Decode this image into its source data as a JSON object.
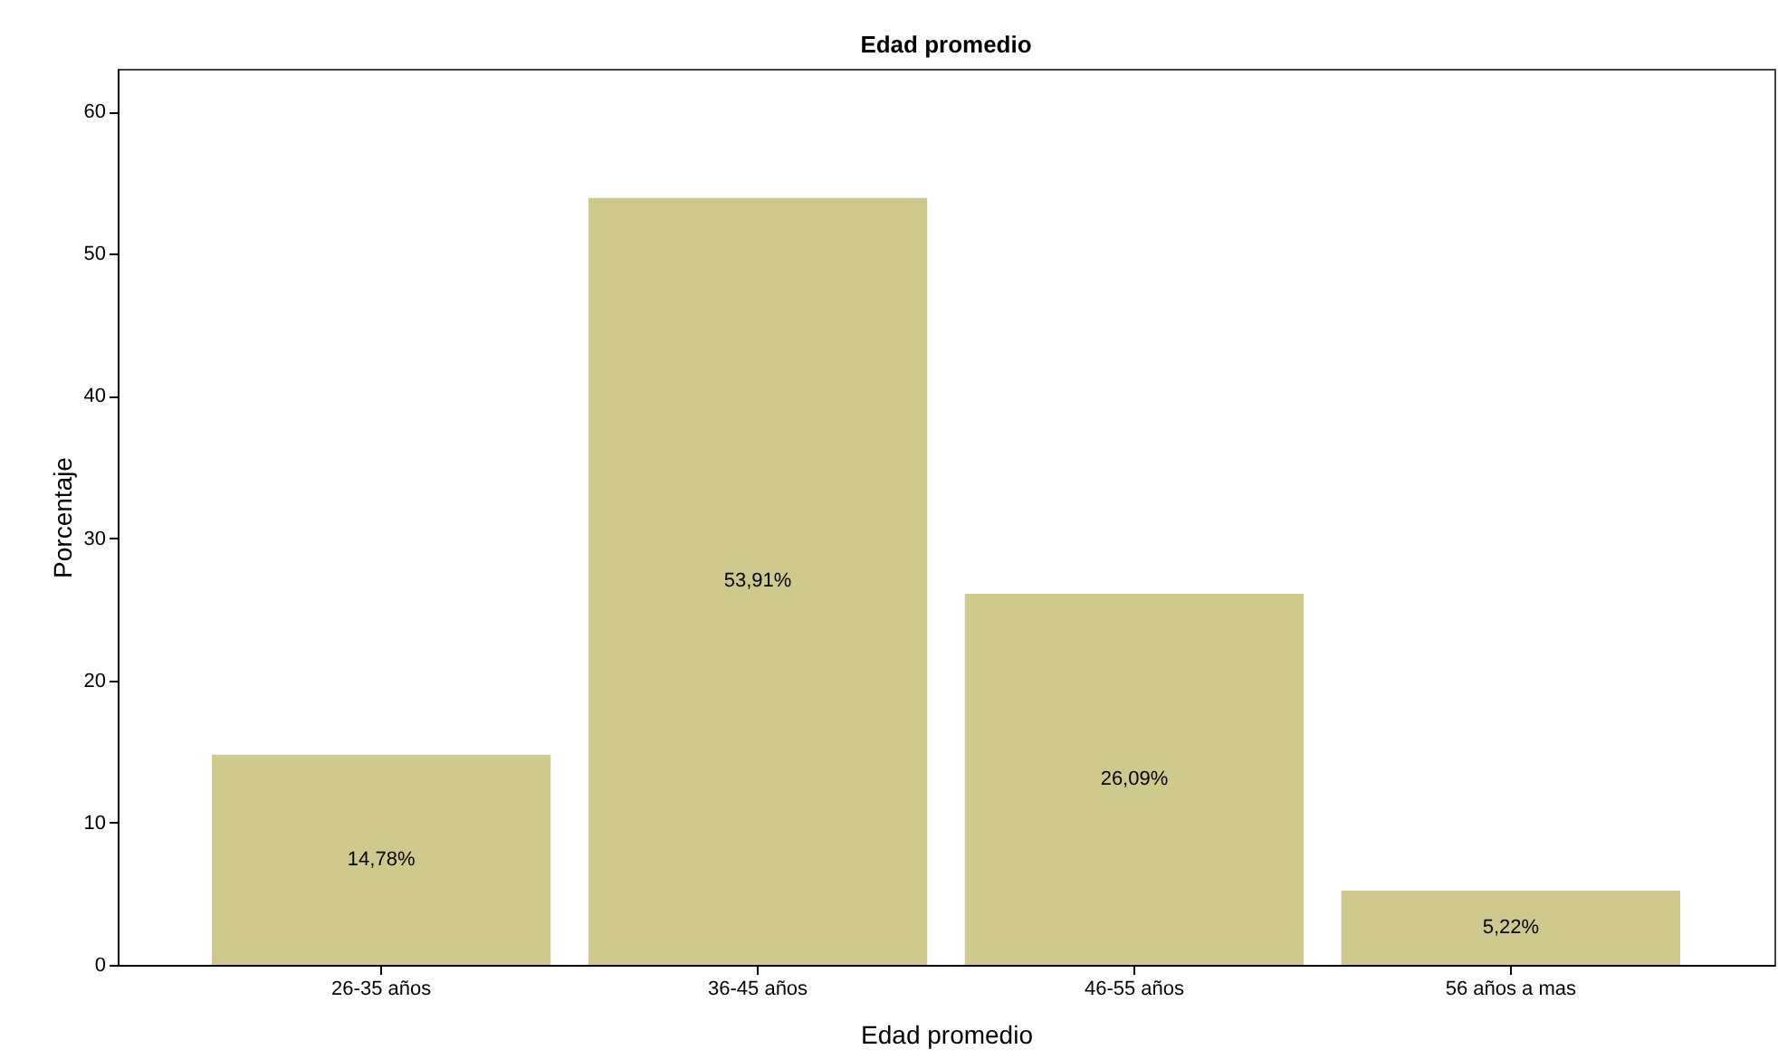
{
  "chart_data": {
    "type": "bar",
    "title": "Edad promedio",
    "xlabel": "Edad promedio",
    "ylabel": "Porcentaje",
    "categories": [
      "26-35 años",
      "36-45 años",
      "46-55 años",
      "56 años a mas"
    ],
    "values": [
      14.78,
      53.91,
      26.09,
      5.22
    ],
    "value_labels": [
      "14,78%",
      "53,91%",
      "26,09%",
      "5,22%"
    ],
    "color": "#d0c98e",
    "ylim": [
      0,
      63
    ],
    "yticks": [
      0,
      10,
      20,
      30,
      40,
      50,
      60
    ],
    "grid": false
  }
}
